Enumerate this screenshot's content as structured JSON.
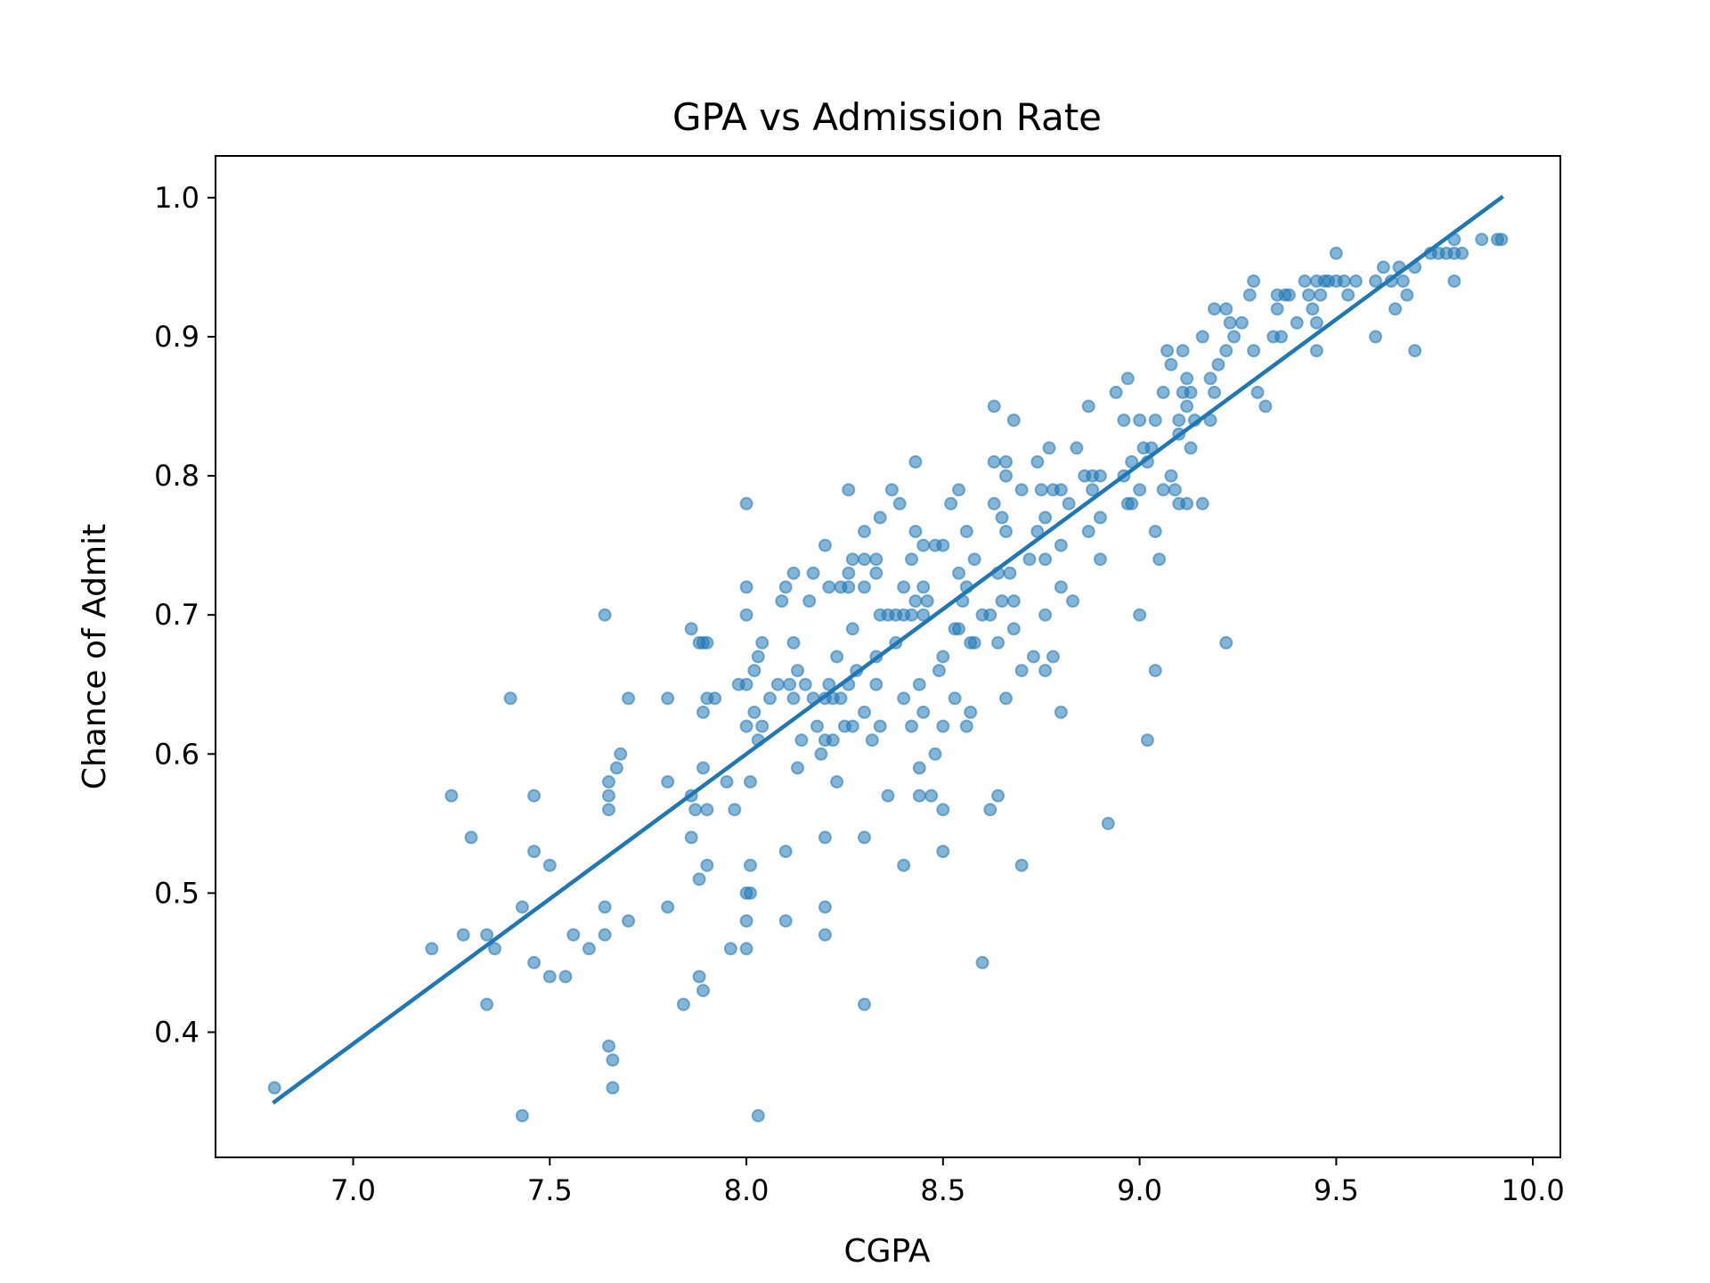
{
  "chart_data": {
    "type": "scatter",
    "title": "GPA vs Admission Rate",
    "xlabel": "CGPA",
    "ylabel": "Chance of Admit",
    "xlim": [
      6.65,
      10.07
    ],
    "ylim": [
      0.31,
      1.03
    ],
    "xticks": [
      "7.0",
      "7.5",
      "8.0",
      "8.5",
      "9.0",
      "9.5",
      "10.0"
    ],
    "yticks": [
      "0.4",
      "0.5",
      "0.6",
      "0.7",
      "0.8",
      "0.9",
      "1.0"
    ],
    "grid": false,
    "point_color": "#1f77b4",
    "point_alpha": 0.55,
    "line_color": "#1f77b4",
    "regression_line": {
      "x": [
        6.8,
        9.92
      ],
      "y": [
        0.35,
        1.0
      ]
    },
    "points": [
      [
        6.8,
        0.36
      ],
      [
        7.2,
        0.46
      ],
      [
        7.25,
        0.57
      ],
      [
        7.28,
        0.47
      ],
      [
        7.3,
        0.54
      ],
      [
        7.34,
        0.47
      ],
      [
        7.34,
        0.42
      ],
      [
        7.36,
        0.46
      ],
      [
        7.4,
        0.64
      ],
      [
        7.43,
        0.49
      ],
      [
        7.43,
        0.34
      ],
      [
        7.46,
        0.57
      ],
      [
        7.46,
        0.53
      ],
      [
        7.46,
        0.45
      ],
      [
        7.5,
        0.52
      ],
      [
        7.5,
        0.44
      ],
      [
        7.54,
        0.44
      ],
      [
        7.56,
        0.47
      ],
      [
        7.6,
        0.46
      ],
      [
        7.64,
        0.7
      ],
      [
        7.64,
        0.49
      ],
      [
        7.64,
        0.47
      ],
      [
        7.65,
        0.58
      ],
      [
        7.65,
        0.57
      ],
      [
        7.65,
        0.56
      ],
      [
        7.65,
        0.39
      ],
      [
        7.66,
        0.38
      ],
      [
        7.66,
        0.36
      ],
      [
        7.67,
        0.59
      ],
      [
        7.68,
        0.6
      ],
      [
        7.7,
        0.64
      ],
      [
        7.7,
        0.48
      ],
      [
        7.8,
        0.64
      ],
      [
        7.8,
        0.58
      ],
      [
        7.8,
        0.49
      ],
      [
        7.84,
        0.42
      ],
      [
        7.86,
        0.69
      ],
      [
        7.86,
        0.57
      ],
      [
        7.86,
        0.54
      ],
      [
        7.87,
        0.56
      ],
      [
        7.88,
        0.68
      ],
      [
        7.88,
        0.51
      ],
      [
        7.88,
        0.44
      ],
      [
        7.89,
        0.68
      ],
      [
        7.89,
        0.63
      ],
      [
        7.89,
        0.59
      ],
      [
        7.89,
        0.43
      ],
      [
        7.9,
        0.68
      ],
      [
        7.9,
        0.64
      ],
      [
        7.9,
        0.56
      ],
      [
        7.9,
        0.52
      ],
      [
        7.92,
        0.64
      ],
      [
        7.95,
        0.58
      ],
      [
        7.96,
        0.46
      ],
      [
        7.97,
        0.56
      ],
      [
        7.98,
        0.65
      ],
      [
        8.0,
        0.78
      ],
      [
        8.0,
        0.72
      ],
      [
        8.0,
        0.7
      ],
      [
        8.0,
        0.65
      ],
      [
        8.0,
        0.62
      ],
      [
        8.0,
        0.5
      ],
      [
        8.0,
        0.48
      ],
      [
        8.0,
        0.46
      ],
      [
        8.01,
        0.58
      ],
      [
        8.01,
        0.52
      ],
      [
        8.01,
        0.5
      ],
      [
        8.02,
        0.66
      ],
      [
        8.02,
        0.63
      ],
      [
        8.03,
        0.67
      ],
      [
        8.03,
        0.61
      ],
      [
        8.03,
        0.34
      ],
      [
        8.04,
        0.68
      ],
      [
        8.04,
        0.62
      ],
      [
        8.06,
        0.64
      ],
      [
        8.08,
        0.65
      ],
      [
        8.09,
        0.71
      ],
      [
        8.1,
        0.72
      ],
      [
        8.1,
        0.53
      ],
      [
        8.1,
        0.48
      ],
      [
        8.11,
        0.65
      ],
      [
        8.12,
        0.73
      ],
      [
        8.12,
        0.68
      ],
      [
        8.12,
        0.64
      ],
      [
        8.13,
        0.66
      ],
      [
        8.13,
        0.59
      ],
      [
        8.14,
        0.61
      ],
      [
        8.15,
        0.65
      ],
      [
        8.16,
        0.71
      ],
      [
        8.17,
        0.73
      ],
      [
        8.17,
        0.64
      ],
      [
        8.18,
        0.62
      ],
      [
        8.19,
        0.6
      ],
      [
        8.2,
        0.75
      ],
      [
        8.2,
        0.64
      ],
      [
        8.2,
        0.61
      ],
      [
        8.2,
        0.54
      ],
      [
        8.2,
        0.49
      ],
      [
        8.2,
        0.47
      ],
      [
        8.21,
        0.72
      ],
      [
        8.21,
        0.65
      ],
      [
        8.22,
        0.64
      ],
      [
        8.22,
        0.61
      ],
      [
        8.23,
        0.67
      ],
      [
        8.23,
        0.58
      ],
      [
        8.24,
        0.72
      ],
      [
        8.24,
        0.64
      ],
      [
        8.25,
        0.62
      ],
      [
        8.26,
        0.79
      ],
      [
        8.26,
        0.73
      ],
      [
        8.26,
        0.72
      ],
      [
        8.26,
        0.65
      ],
      [
        8.27,
        0.74
      ],
      [
        8.27,
        0.69
      ],
      [
        8.27,
        0.62
      ],
      [
        8.28,
        0.66
      ],
      [
        8.3,
        0.76
      ],
      [
        8.3,
        0.74
      ],
      [
        8.3,
        0.72
      ],
      [
        8.3,
        0.63
      ],
      [
        8.3,
        0.54
      ],
      [
        8.3,
        0.42
      ],
      [
        8.32,
        0.61
      ],
      [
        8.33,
        0.74
      ],
      [
        8.33,
        0.73
      ],
      [
        8.33,
        0.67
      ],
      [
        8.33,
        0.65
      ],
      [
        8.34,
        0.77
      ],
      [
        8.34,
        0.7
      ],
      [
        8.34,
        0.62
      ],
      [
        8.36,
        0.7
      ],
      [
        8.36,
        0.57
      ],
      [
        8.37,
        0.79
      ],
      [
        8.38,
        0.7
      ],
      [
        8.38,
        0.68
      ],
      [
        8.39,
        0.78
      ],
      [
        8.4,
        0.72
      ],
      [
        8.4,
        0.7
      ],
      [
        8.4,
        0.64
      ],
      [
        8.4,
        0.52
      ],
      [
        8.42,
        0.74
      ],
      [
        8.42,
        0.7
      ],
      [
        8.42,
        0.62
      ],
      [
        8.43,
        0.81
      ],
      [
        8.43,
        0.76
      ],
      [
        8.43,
        0.71
      ],
      [
        8.44,
        0.65
      ],
      [
        8.44,
        0.59
      ],
      [
        8.44,
        0.57
      ],
      [
        8.45,
        0.75
      ],
      [
        8.45,
        0.72
      ],
      [
        8.45,
        0.7
      ],
      [
        8.45,
        0.63
      ],
      [
        8.46,
        0.71
      ],
      [
        8.47,
        0.57
      ],
      [
        8.48,
        0.75
      ],
      [
        8.48,
        0.6
      ],
      [
        8.49,
        0.66
      ],
      [
        8.5,
        0.75
      ],
      [
        8.5,
        0.67
      ],
      [
        8.5,
        0.62
      ],
      [
        8.5,
        0.56
      ],
      [
        8.5,
        0.53
      ],
      [
        8.52,
        0.78
      ],
      [
        8.53,
        0.69
      ],
      [
        8.53,
        0.64
      ],
      [
        8.54,
        0.79
      ],
      [
        8.54,
        0.73
      ],
      [
        8.54,
        0.69
      ],
      [
        8.55,
        0.71
      ],
      [
        8.56,
        0.76
      ],
      [
        8.56,
        0.72
      ],
      [
        8.56,
        0.62
      ],
      [
        8.57,
        0.68
      ],
      [
        8.57,
        0.63
      ],
      [
        8.58,
        0.74
      ],
      [
        8.58,
        0.68
      ],
      [
        8.6,
        0.7
      ],
      [
        8.6,
        0.45
      ],
      [
        8.62,
        0.7
      ],
      [
        8.62,
        0.56
      ],
      [
        8.63,
        0.85
      ],
      [
        8.63,
        0.81
      ],
      [
        8.63,
        0.78
      ],
      [
        8.64,
        0.73
      ],
      [
        8.64,
        0.68
      ],
      [
        8.64,
        0.57
      ],
      [
        8.65,
        0.77
      ],
      [
        8.65,
        0.71
      ],
      [
        8.66,
        0.81
      ],
      [
        8.66,
        0.8
      ],
      [
        8.66,
        0.76
      ],
      [
        8.66,
        0.64
      ],
      [
        8.67,
        0.73
      ],
      [
        8.68,
        0.84
      ],
      [
        8.68,
        0.71
      ],
      [
        8.68,
        0.69
      ],
      [
        8.7,
        0.79
      ],
      [
        8.7,
        0.66
      ],
      [
        8.7,
        0.52
      ],
      [
        8.72,
        0.74
      ],
      [
        8.73,
        0.67
      ],
      [
        8.74,
        0.81
      ],
      [
        8.74,
        0.76
      ],
      [
        8.75,
        0.79
      ],
      [
        8.76,
        0.77
      ],
      [
        8.76,
        0.74
      ],
      [
        8.76,
        0.7
      ],
      [
        8.76,
        0.66
      ],
      [
        8.77,
        0.82
      ],
      [
        8.78,
        0.79
      ],
      [
        8.78,
        0.67
      ],
      [
        8.8,
        0.79
      ],
      [
        8.8,
        0.75
      ],
      [
        8.8,
        0.72
      ],
      [
        8.8,
        0.63
      ],
      [
        8.82,
        0.78
      ],
      [
        8.83,
        0.71
      ],
      [
        8.84,
        0.82
      ],
      [
        8.86,
        0.8
      ],
      [
        8.87,
        0.85
      ],
      [
        8.87,
        0.76
      ],
      [
        8.88,
        0.8
      ],
      [
        8.88,
        0.79
      ],
      [
        8.9,
        0.8
      ],
      [
        8.9,
        0.77
      ],
      [
        8.9,
        0.74
      ],
      [
        8.92,
        0.55
      ],
      [
        8.94,
        0.86
      ],
      [
        8.96,
        0.84
      ],
      [
        8.96,
        0.8
      ],
      [
        8.97,
        0.87
      ],
      [
        8.97,
        0.78
      ],
      [
        8.98,
        0.81
      ],
      [
        8.98,
        0.78
      ],
      [
        9.0,
        0.84
      ],
      [
        9.0,
        0.79
      ],
      [
        9.0,
        0.7
      ],
      [
        9.01,
        0.82
      ],
      [
        9.02,
        0.81
      ],
      [
        9.02,
        0.61
      ],
      [
        9.03,
        0.82
      ],
      [
        9.04,
        0.84
      ],
      [
        9.04,
        0.76
      ],
      [
        9.04,
        0.66
      ],
      [
        9.05,
        0.74
      ],
      [
        9.06,
        0.86
      ],
      [
        9.06,
        0.79
      ],
      [
        9.07,
        0.89
      ],
      [
        9.08,
        0.88
      ],
      [
        9.08,
        0.8
      ],
      [
        9.09,
        0.79
      ],
      [
        9.1,
        0.84
      ],
      [
        9.1,
        0.83
      ],
      [
        9.1,
        0.78
      ],
      [
        9.11,
        0.89
      ],
      [
        9.11,
        0.86
      ],
      [
        9.12,
        0.87
      ],
      [
        9.12,
        0.85
      ],
      [
        9.12,
        0.78
      ],
      [
        9.13,
        0.86
      ],
      [
        9.13,
        0.82
      ],
      [
        9.14,
        0.84
      ],
      [
        9.16,
        0.9
      ],
      [
        9.16,
        0.78
      ],
      [
        9.18,
        0.87
      ],
      [
        9.18,
        0.84
      ],
      [
        9.19,
        0.92
      ],
      [
        9.19,
        0.86
      ],
      [
        9.2,
        0.88
      ],
      [
        9.22,
        0.92
      ],
      [
        9.22,
        0.89
      ],
      [
        9.22,
        0.68
      ],
      [
        9.23,
        0.91
      ],
      [
        9.24,
        0.9
      ],
      [
        9.26,
        0.91
      ],
      [
        9.28,
        0.93
      ],
      [
        9.29,
        0.94
      ],
      [
        9.29,
        0.89
      ],
      [
        9.3,
        0.86
      ],
      [
        9.32,
        0.85
      ],
      [
        9.34,
        0.9
      ],
      [
        9.35,
        0.93
      ],
      [
        9.35,
        0.92
      ],
      [
        9.36,
        0.9
      ],
      [
        9.37,
        0.93
      ],
      [
        9.38,
        0.93
      ],
      [
        9.4,
        0.91
      ],
      [
        9.42,
        0.94
      ],
      [
        9.43,
        0.93
      ],
      [
        9.44,
        0.92
      ],
      [
        9.45,
        0.94
      ],
      [
        9.45,
        0.91
      ],
      [
        9.45,
        0.89
      ],
      [
        9.46,
        0.93
      ],
      [
        9.47,
        0.94
      ],
      [
        9.48,
        0.94
      ],
      [
        9.5,
        0.96
      ],
      [
        9.5,
        0.94
      ],
      [
        9.52,
        0.94
      ],
      [
        9.53,
        0.93
      ],
      [
        9.55,
        0.94
      ],
      [
        9.6,
        0.94
      ],
      [
        9.6,
        0.9
      ],
      [
        9.62,
        0.95
      ],
      [
        9.64,
        0.94
      ],
      [
        9.65,
        0.92
      ],
      [
        9.66,
        0.95
      ],
      [
        9.67,
        0.94
      ],
      [
        9.68,
        0.93
      ],
      [
        9.7,
        0.95
      ],
      [
        9.7,
        0.89
      ],
      [
        9.74,
        0.96
      ],
      [
        9.76,
        0.96
      ],
      [
        9.78,
        0.96
      ],
      [
        9.8,
        0.97
      ],
      [
        9.8,
        0.96
      ],
      [
        9.8,
        0.94
      ],
      [
        9.82,
        0.96
      ],
      [
        9.87,
        0.97
      ],
      [
        9.91,
        0.97
      ],
      [
        9.92,
        0.97
      ]
    ]
  }
}
